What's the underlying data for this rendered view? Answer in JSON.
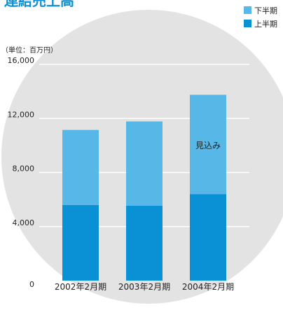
{
  "chart_data": {
    "type": "bar",
    "stacked": true,
    "title": "連結売上高",
    "unit_label": "（単位：百万円）",
    "categories": [
      "2002年2月期",
      "2003年2月期",
      "2004年2月期"
    ],
    "series": [
      {
        "name": "上半期",
        "values": [
          5600,
          5550,
          6400
        ],
        "color": "#0a90d5"
      },
      {
        "name": "下半期",
        "values": [
          5550,
          6230,
          7350
        ],
        "color": "#57b8e8"
      }
    ],
    "yticks": [
      "16,000",
      "12,000",
      "8,000",
      "4,000",
      "0"
    ],
    "ytick_values": [
      16000,
      12000,
      8000,
      4000,
      0
    ],
    "ylim": [
      0,
      16000
    ],
    "annotation": "見込み",
    "legend_position": "top-right",
    "grid": true,
    "background_color": "#e3e3e3",
    "gridline_color": "#ffffff",
    "text_color": "#222222",
    "title_color": "#0a90d5"
  }
}
